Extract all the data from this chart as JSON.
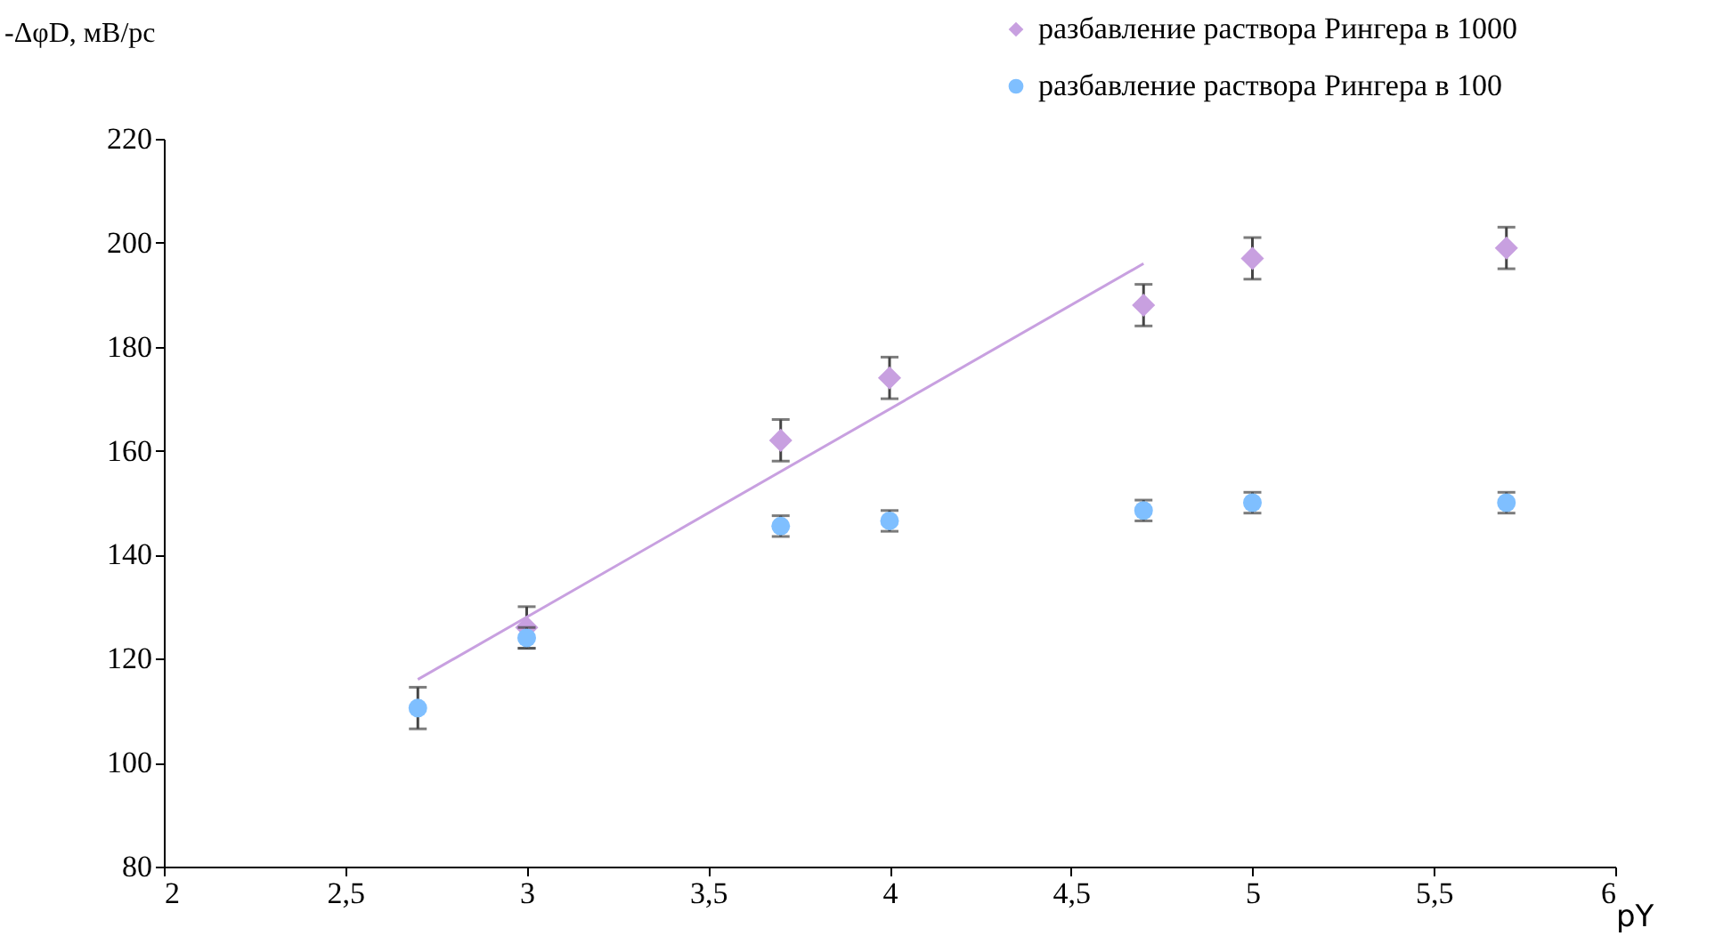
{
  "chart_data": {
    "type": "scatter",
    "xlabel": "pY",
    "ylabel": "-ΔφD, мВ/рс",
    "xlim": [
      2,
      6
    ],
    "xticks": [
      {
        "value": 2,
        "label": "2"
      },
      {
        "value": 2.5,
        "label": "2,5"
      },
      {
        "value": 3,
        "label": "3"
      },
      {
        "value": 3.5,
        "label": "3,5"
      },
      {
        "value": 4,
        "label": "4"
      },
      {
        "value": 4.5,
        "label": "4,5"
      },
      {
        "value": 5,
        "label": "5"
      },
      {
        "value": 5.5,
        "label": "5,5"
      },
      {
        "value": 6,
        "label": "6"
      }
    ],
    "ylim": [
      80,
      220
    ],
    "yticks": [
      80,
      100,
      120,
      140,
      160,
      180,
      200,
      220
    ],
    "x": [
      2.7,
      3,
      3.7,
      4,
      4.7,
      5,
      5.7
    ],
    "series": [
      {
        "name": "разбавление раствора Рингера в 1000",
        "color": "#c8a0e0",
        "marker": "diamond",
        "values": [
          null,
          126,
          162,
          174,
          188,
          197,
          199
        ],
        "errors": [
          null,
          4,
          4,
          4,
          4,
          4,
          4
        ]
      },
      {
        "name": "разбавление раствора Рингера в 100",
        "color": "#7fbfff",
        "marker": "circle",
        "values": [
          110.5,
          124,
          145.5,
          146.5,
          148.5,
          150,
          150
        ],
        "errors": [
          4,
          2,
          2,
          2,
          2,
          2,
          2
        ]
      },
      {
        "type": "line",
        "color": "#c8a0e0",
        "marker": "none",
        "x": [
          2.7,
          4.7
        ],
        "values": [
          116,
          196
        ]
      }
    ],
    "legend": "top right",
    "grid": false
  }
}
